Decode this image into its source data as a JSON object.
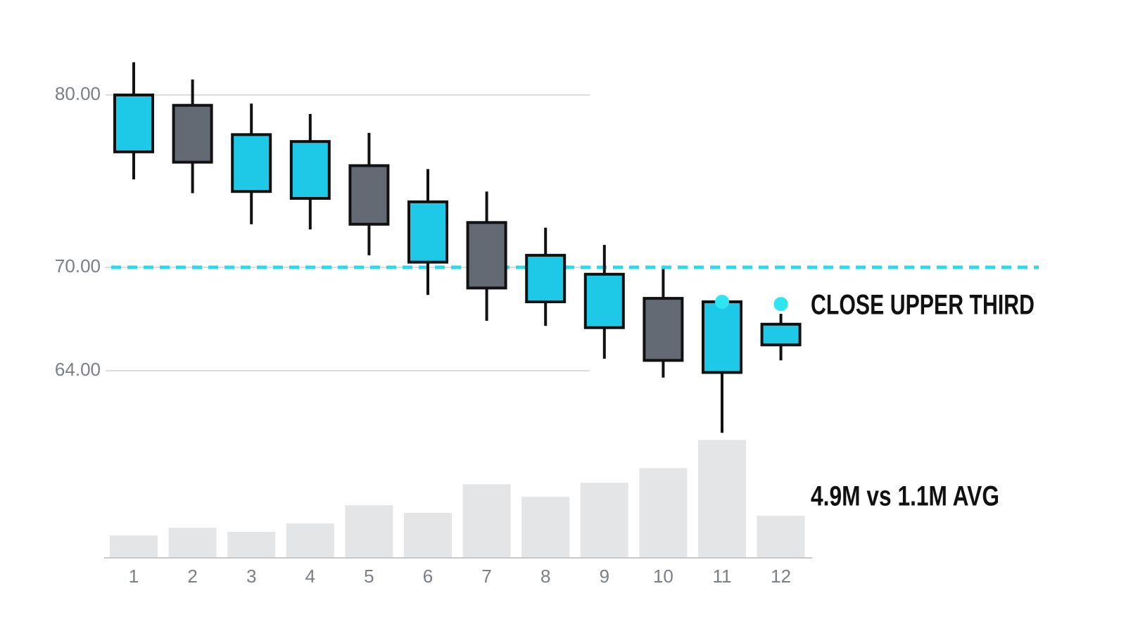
{
  "chart_data": {
    "type": "candlestick",
    "categories": [
      "1",
      "2",
      "3",
      "4",
      "5",
      "6",
      "7",
      "8",
      "9",
      "10",
      "11",
      "12"
    ],
    "open": [
      76.7,
      79.4,
      74.4,
      74.0,
      75.9,
      70.3,
      72.6,
      68.0,
      66.5,
      68.2,
      63.9,
      65.5
    ],
    "high": [
      81.9,
      80.9,
      79.5,
      78.9,
      77.8,
      75.7,
      74.4,
      72.3,
      71.3,
      69.9,
      68.0,
      67.3
    ],
    "low": [
      75.1,
      74.3,
      72.5,
      72.2,
      70.7,
      68.4,
      66.9,
      66.6,
      64.7,
      63.6,
      60.4,
      64.6
    ],
    "close": [
      80.0,
      76.1,
      77.7,
      77.3,
      72.5,
      73.8,
      68.8,
      70.7,
      69.6,
      64.6,
      68.0,
      66.7
    ],
    "up_color": "#1ec9e8",
    "down_color": "#646a73",
    "ylim": [
      59,
      83
    ],
    "yticks": [
      {
        "value": 80,
        "label": "80.00"
      },
      {
        "value": 70,
        "label": "70.00"
      },
      {
        "value": 64,
        "label": "64.00"
      }
    ],
    "grid": true,
    "reference_line": {
      "value": 70,
      "color": "#2ad9ea",
      "dashed": true
    },
    "volume": {
      "values": [
        0.93,
        1.25,
        1.08,
        1.43,
        2.19,
        1.87,
        3.06,
        2.54,
        3.12,
        3.73,
        4.9,
        1.75
      ],
      "color": "#e4e5e7",
      "ylim": [
        0,
        5
      ]
    },
    "annotations": [
      "CLOSE UPPER THIRD",
      "4.9M vs 1.1M AVG"
    ]
  }
}
